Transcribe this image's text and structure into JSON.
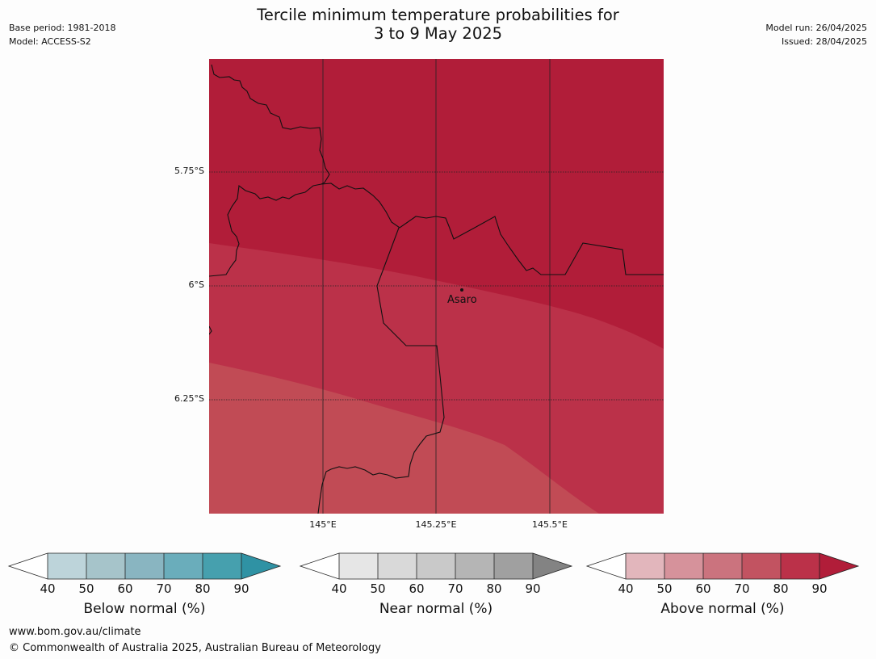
{
  "header": {
    "title_line1": "Tercile minimum temperature probabilities for",
    "title_line2": "3 to 9 May 2025",
    "base_period": "Base period: 1981-2018",
    "model": "Model: ACCESS-S2",
    "model_run": "Model run: 26/04/2025",
    "issued": "Issued: 28/04/2025"
  },
  "map": {
    "lat_labels": [
      "5.75°S",
      "6°S",
      "6.25°S"
    ],
    "lon_labels": [
      "145°E",
      "145.25°E",
      "145.5°E"
    ],
    "place": "Asaro",
    "colors": {
      "band_90": "#b11d39",
      "band_80": "#bb3149",
      "band_70": "#c14b55",
      "border": "#111111",
      "graticule": "#222222"
    }
  },
  "legends": [
    {
      "title": "Below normal (%)",
      "ticks": [
        "40",
        "50",
        "60",
        "70",
        "80",
        "90"
      ],
      "colors": [
        "#ffffff",
        "#bdd4da",
        "#a6c4ca",
        "#89b5c1",
        "#6aadbb",
        "#46a0ae",
        "#2f92a4"
      ]
    },
    {
      "title": "Near normal (%)",
      "ticks": [
        "40",
        "50",
        "60",
        "70",
        "80",
        "90"
      ],
      "colors": [
        "#ffffff",
        "#e6e6e6",
        "#d9d9d9",
        "#c9c9c9",
        "#b5b5b5",
        "#a0a0a0",
        "#838383"
      ]
    },
    {
      "title": "Above normal (%)",
      "ticks": [
        "40",
        "50",
        "60",
        "70",
        "80",
        "90"
      ],
      "colors": [
        "#ffffff",
        "#e2b6bc",
        "#d6929b",
        "#cb737e",
        "#c25361",
        "#bb3149",
        "#b11d39"
      ]
    }
  ],
  "footer": {
    "url": "www.bom.gov.au/climate",
    "copyright": "© Commonwealth of Australia 2025, Australian Bureau of Meteorology"
  }
}
